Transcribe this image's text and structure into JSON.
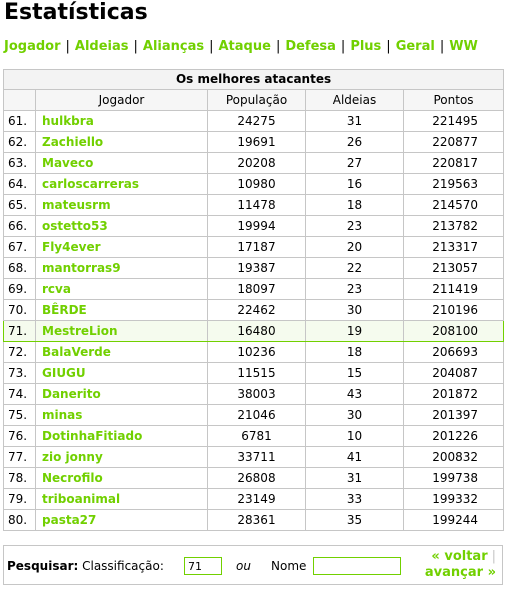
{
  "page_title": "Estatísticas",
  "nav": [
    {
      "label": "Jogador"
    },
    {
      "label": "Aldeias"
    },
    {
      "label": "Alianças"
    },
    {
      "label": "Ataque"
    },
    {
      "label": "Defesa"
    },
    {
      "label": "Plus"
    },
    {
      "label": "Geral"
    },
    {
      "label": "WW"
    }
  ],
  "nav_separator": "|",
  "accent_color": "#71d000",
  "table": {
    "caption": "Os melhores atacantes",
    "headers": {
      "player": "Jogador",
      "population": "População",
      "villages": "Aldeias",
      "points": "Pontos"
    },
    "highlighted_rank": "71.",
    "rows": [
      {
        "rank": "61.",
        "player": "hulkbra",
        "population": "24275",
        "villages": "31",
        "points": "221495"
      },
      {
        "rank": "62.",
        "player": "Zachiello",
        "population": "19691",
        "villages": "26",
        "points": "220877"
      },
      {
        "rank": "63.",
        "player": "Maveco",
        "population": "20208",
        "villages": "27",
        "points": "220817"
      },
      {
        "rank": "64.",
        "player": "carloscarreras",
        "population": "10980",
        "villages": "16",
        "points": "219563"
      },
      {
        "rank": "65.",
        "player": "mateusrm",
        "population": "11478",
        "villages": "18",
        "points": "214570"
      },
      {
        "rank": "66.",
        "player": "ostetto53",
        "population": "19994",
        "villages": "23",
        "points": "213782"
      },
      {
        "rank": "67.",
        "player": "Fly4ever",
        "population": "17187",
        "villages": "20",
        "points": "213317"
      },
      {
        "rank": "68.",
        "player": "mantorras9",
        "population": "19387",
        "villages": "22",
        "points": "213057"
      },
      {
        "rank": "69.",
        "player": "rcva",
        "population": "18097",
        "villages": "23",
        "points": "211419"
      },
      {
        "rank": "70.",
        "player": "BÊRDE",
        "population": "22462",
        "villages": "30",
        "points": "210196"
      },
      {
        "rank": "71.",
        "player": "MestreLion",
        "population": "16480",
        "villages": "19",
        "points": "208100"
      },
      {
        "rank": "72.",
        "player": "BalaVerde",
        "population": "10236",
        "villages": "18",
        "points": "206693"
      },
      {
        "rank": "73.",
        "player": "GIUGU",
        "population": "11515",
        "villages": "15",
        "points": "204087"
      },
      {
        "rank": "74.",
        "player": "Danerito",
        "population": "38003",
        "villages": "43",
        "points": "201872"
      },
      {
        "rank": "75.",
        "player": "minas",
        "population": "21046",
        "villages": "30",
        "points": "201397"
      },
      {
        "rank": "76.",
        "player": "DotinhaFitiado",
        "population": "6781",
        "villages": "10",
        "points": "201226"
      },
      {
        "rank": "77.",
        "player": "zio jonny",
        "population": "33711",
        "villages": "41",
        "points": "200832"
      },
      {
        "rank": "78.",
        "player": "Necrofilo",
        "population": "26808",
        "villages": "31",
        "points": "199738"
      },
      {
        "rank": "79.",
        "player": "triboanimal",
        "population": "23149",
        "villages": "33",
        "points": "199332"
      },
      {
        "rank": "80.",
        "player": "pasta27",
        "population": "28361",
        "villages": "35",
        "points": "199244"
      }
    ]
  },
  "search": {
    "label": "Pesquisar:",
    "rank_label": "Classificação:",
    "rank_value": "71",
    "or_label": "ou",
    "name_label": "Nome",
    "name_value": "",
    "prev_label": "« voltar",
    "next_label": "avançar »",
    "pager_separator": "|"
  }
}
